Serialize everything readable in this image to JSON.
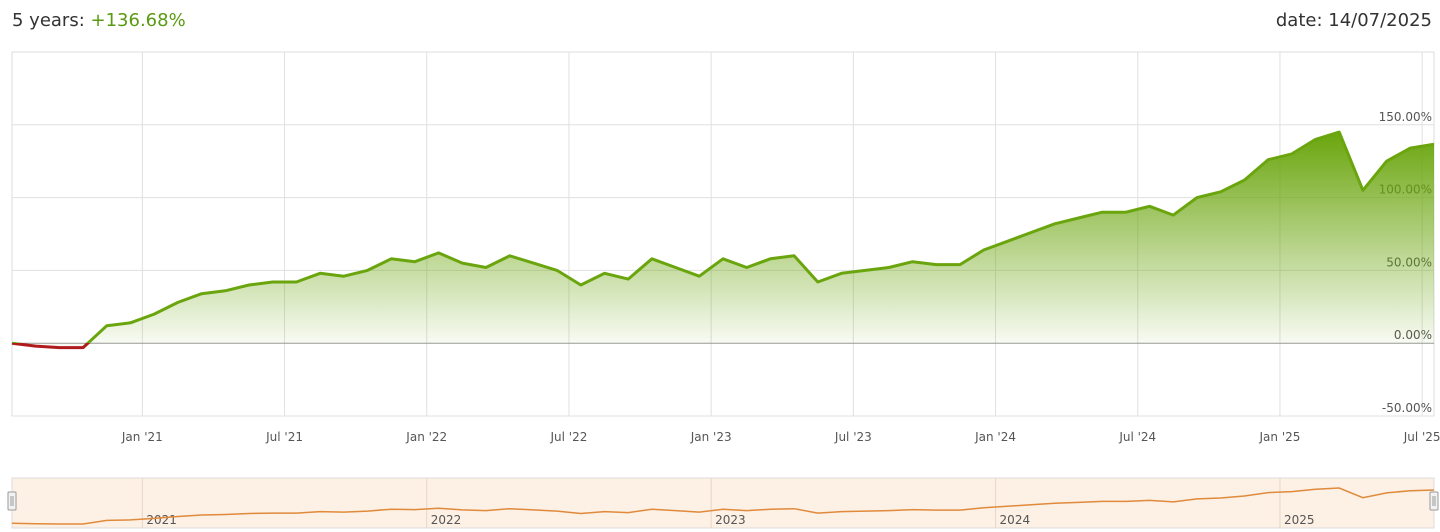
{
  "chart_data": {
    "type": "area",
    "period_label": "5 years:",
    "performance": "+136.68%",
    "date_label": "date: 14/07/2025",
    "x": [
      "2020-07",
      "2020-08",
      "2020-09",
      "2020-10",
      "2020-11",
      "2020-12",
      "2021-01",
      "2021-02",
      "2021-03",
      "2021-04",
      "2021-05",
      "2021-06",
      "2021-07",
      "2021-08",
      "2021-09",
      "2021-10",
      "2021-11",
      "2021-12",
      "2022-01",
      "2022-02",
      "2022-03",
      "2022-04",
      "2022-05",
      "2022-06",
      "2022-07",
      "2022-08",
      "2022-09",
      "2022-10",
      "2022-11",
      "2022-12",
      "2023-01",
      "2023-02",
      "2023-03",
      "2023-04",
      "2023-05",
      "2023-06",
      "2023-07",
      "2023-08",
      "2023-09",
      "2023-10",
      "2023-11",
      "2023-12",
      "2024-01",
      "2024-02",
      "2024-03",
      "2024-04",
      "2024-05",
      "2024-06",
      "2024-07",
      "2024-08",
      "2024-09",
      "2024-10",
      "2024-11",
      "2024-12",
      "2025-01",
      "2025-02",
      "2025-03",
      "2025-04",
      "2025-05",
      "2025-06",
      "2025-07"
    ],
    "values": [
      0,
      -2,
      -3,
      -3,
      12,
      14,
      20,
      28,
      34,
      36,
      40,
      42,
      42,
      48,
      46,
      50,
      58,
      56,
      62,
      55,
      52,
      60,
      55,
      50,
      40,
      48,
      44,
      58,
      52,
      46,
      58,
      52,
      58,
      60,
      42,
      48,
      50,
      52,
      56,
      54,
      54,
      64,
      70,
      76,
      82,
      86,
      90,
      90,
      94,
      88,
      100,
      104,
      112,
      126,
      130,
      140,
      145,
      105,
      125,
      134,
      136.68
    ],
    "color": "#6aa50d",
    "negative_color": "#b01c1c",
    "navigator_color": "#e08a3c",
    "xlim": [
      "2020-07",
      "2025-07"
    ],
    "xticks": [
      {
        "value": "2021-01",
        "label": "Jan '21"
      },
      {
        "value": "2021-07",
        "label": "Jul '21"
      },
      {
        "value": "2022-01",
        "label": "Jan '22"
      },
      {
        "value": "2022-07",
        "label": "Jul '22"
      },
      {
        "value": "2023-01",
        "label": "Jan '23"
      },
      {
        "value": "2023-07",
        "label": "Jul '23"
      },
      {
        "value": "2024-01",
        "label": "Jan '24"
      },
      {
        "value": "2024-07",
        "label": "Jul '24"
      },
      {
        "value": "2025-01",
        "label": "Jan '25"
      },
      {
        "value": "2025-07",
        "label": "Jul '25"
      }
    ],
    "ylim": [
      -50,
      200
    ],
    "yticks": [
      {
        "value": -50,
        "label": "-50.00%"
      },
      {
        "value": 0,
        "label": "0.00%"
      },
      {
        "value": 50,
        "label": "50.00%"
      },
      {
        "value": 100,
        "label": "100.00%"
      },
      {
        "value": 150,
        "label": "150.00%"
      }
    ],
    "navigator_ticks": [
      {
        "value": "2021-01",
        "label": "2021"
      },
      {
        "value": "2022-01",
        "label": "2022"
      },
      {
        "value": "2023-01",
        "label": "2023"
      },
      {
        "value": "2024-01",
        "label": "2024"
      },
      {
        "value": "2025-01",
        "label": "2025"
      }
    ],
    "grid": true
  }
}
